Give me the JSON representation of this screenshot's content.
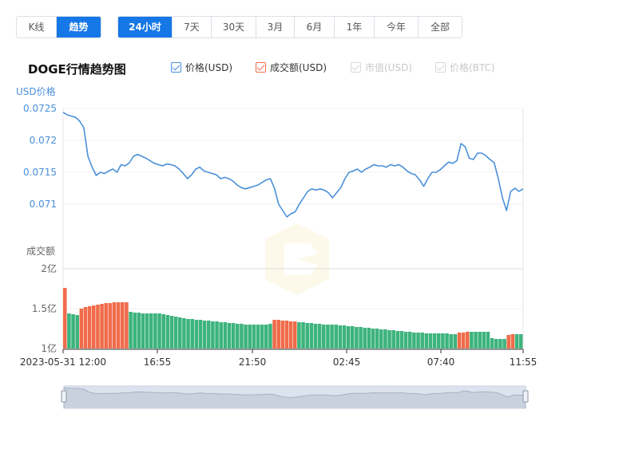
{
  "mode_buttons": [
    {
      "label": "K线",
      "active": false
    },
    {
      "label": "趋势",
      "active": true
    }
  ],
  "range_buttons": [
    {
      "label": "24小时",
      "active": true
    },
    {
      "label": "7天",
      "active": false
    },
    {
      "label": "30天",
      "active": false
    },
    {
      "label": "3月",
      "active": false
    },
    {
      "label": "6月",
      "active": false
    },
    {
      "label": "1年",
      "active": false
    },
    {
      "label": "今年",
      "active": false
    },
    {
      "label": "全部",
      "active": false
    }
  ],
  "legend": [
    {
      "label": "价格(USD)",
      "color": "#4a90d9",
      "checked": true,
      "enabled": true
    },
    {
      "label": "成交额(USD)",
      "color": "#f06b4a",
      "checked": true,
      "enabled": true
    },
    {
      "label": "市值(USD)",
      "color": "#cccccc",
      "checked": true,
      "enabled": false
    },
    {
      "label": "价格(BTC)",
      "color": "#cccccc",
      "checked": true,
      "enabled": false
    }
  ],
  "colors": {
    "price_line": "#4a90d9",
    "volume_up": "#3db37d",
    "volume_down": "#f06b4a",
    "accent": "#1677e6"
  },
  "chart_data": {
    "type": "line",
    "title": "DOGE行情趋势图",
    "price_axis_label": "USD价格",
    "volume_axis_label": "成交额",
    "price_ticks": [
      "0.0725",
      "0.072",
      "0.0715",
      "0.071"
    ],
    "price_ylim": [
      0.0706,
      0.0725
    ],
    "volume_ticks": [
      "2亿",
      "1.5亿",
      "1亿"
    ],
    "volume_ylim": [
      1.0,
      2.0
    ],
    "x_ticks": [
      "2023-05-31 12:00",
      "16:55",
      "21:50",
      "02:45",
      "07:40",
      "11:55"
    ],
    "price_series": [
      [
        0,
        0.07244
      ],
      [
        1,
        0.0724
      ],
      [
        2,
        0.07238
      ],
      [
        3,
        0.07236
      ],
      [
        4,
        0.0723
      ],
      [
        5,
        0.0722
      ],
      [
        6,
        0.07175
      ],
      [
        7,
        0.07158
      ],
      [
        8,
        0.07145
      ],
      [
        9,
        0.0715
      ],
      [
        10,
        0.07148
      ],
      [
        11,
        0.07152
      ],
      [
        12,
        0.07155
      ],
      [
        13,
        0.0715
      ],
      [
        14,
        0.07162
      ],
      [
        15,
        0.0716
      ],
      [
        16,
        0.07165
      ],
      [
        17,
        0.07175
      ],
      [
        18,
        0.07178
      ],
      [
        19,
        0.07175
      ],
      [
        20,
        0.07172
      ],
      [
        21,
        0.07168
      ],
      [
        22,
        0.07164
      ],
      [
        23,
        0.07162
      ],
      [
        24,
        0.0716
      ],
      [
        25,
        0.07163
      ],
      [
        26,
        0.07162
      ],
      [
        27,
        0.0716
      ],
      [
        28,
        0.07155
      ],
      [
        29,
        0.07148
      ],
      [
        30,
        0.0714
      ],
      [
        31,
        0.07146
      ],
      [
        32,
        0.07155
      ],
      [
        33,
        0.07158
      ],
      [
        34,
        0.07152
      ],
      [
        35,
        0.0715
      ],
      [
        36,
        0.07148
      ],
      [
        37,
        0.07146
      ],
      [
        38,
        0.0714
      ],
      [
        39,
        0.07142
      ],
      [
        40,
        0.0714
      ],
      [
        41,
        0.07136
      ],
      [
        42,
        0.0713
      ],
      [
        43,
        0.07126
      ],
      [
        44,
        0.07124
      ],
      [
        45,
        0.07126
      ],
      [
        46,
        0.07128
      ],
      [
        47,
        0.0713
      ],
      [
        48,
        0.07134
      ],
      [
        49,
        0.07138
      ],
      [
        50,
        0.0714
      ],
      [
        51,
        0.07125
      ],
      [
        52,
        0.071
      ],
      [
        53,
        0.0709
      ],
      [
        54,
        0.0708
      ],
      [
        55,
        0.07085
      ],
      [
        56,
        0.07088
      ],
      [
        57,
        0.071
      ],
      [
        58,
        0.0711
      ],
      [
        59,
        0.0712
      ],
      [
        60,
        0.07124
      ],
      [
        61,
        0.07122
      ],
      [
        62,
        0.07124
      ],
      [
        63,
        0.07122
      ],
      [
        64,
        0.07118
      ],
      [
        65,
        0.0711
      ],
      [
        66,
        0.07118
      ],
      [
        67,
        0.07126
      ],
      [
        68,
        0.0714
      ],
      [
        69,
        0.0715
      ],
      [
        70,
        0.07152
      ],
      [
        71,
        0.07155
      ],
      [
        72,
        0.0715
      ],
      [
        73,
        0.07155
      ],
      [
        74,
        0.07158
      ],
      [
        75,
        0.07162
      ],
      [
        76,
        0.0716
      ],
      [
        77,
        0.0716
      ],
      [
        78,
        0.07158
      ],
      [
        79,
        0.07162
      ],
      [
        80,
        0.0716
      ],
      [
        81,
        0.07162
      ],
      [
        82,
        0.07158
      ],
      [
        83,
        0.07152
      ],
      [
        84,
        0.07148
      ],
      [
        85,
        0.07146
      ],
      [
        86,
        0.07138
      ],
      [
        87,
        0.07128
      ],
      [
        88,
        0.0714
      ],
      [
        89,
        0.0715
      ],
      [
        90,
        0.0715
      ],
      [
        91,
        0.07154
      ],
      [
        92,
        0.0716
      ],
      [
        93,
        0.07166
      ],
      [
        94,
        0.07164
      ],
      [
        95,
        0.07168
      ],
      [
        96,
        0.07195
      ],
      [
        97,
        0.0719
      ],
      [
        98,
        0.07172
      ],
      [
        99,
        0.0717
      ],
      [
        100,
        0.0718
      ],
      [
        101,
        0.0718
      ],
      [
        102,
        0.07176
      ],
      [
        103,
        0.0717
      ],
      [
        104,
        0.07165
      ],
      [
        105,
        0.0714
      ],
      [
        106,
        0.0711
      ],
      [
        107,
        0.0709
      ],
      [
        108,
        0.0712
      ],
      [
        109,
        0.07125
      ],
      [
        110,
        0.0712
      ],
      [
        111,
        0.07124
      ]
    ],
    "volume_series": [
      [
        0,
        1.76,
        "down"
      ],
      [
        1,
        1.44,
        "up"
      ],
      [
        2,
        1.43,
        "up"
      ],
      [
        3,
        1.42,
        "up"
      ],
      [
        4,
        1.5,
        "down"
      ],
      [
        5,
        1.52,
        "down"
      ],
      [
        6,
        1.53,
        "down"
      ],
      [
        7,
        1.54,
        "down"
      ],
      [
        8,
        1.55,
        "down"
      ],
      [
        9,
        1.56,
        "down"
      ],
      [
        10,
        1.57,
        "down"
      ],
      [
        11,
        1.57,
        "down"
      ],
      [
        12,
        1.58,
        "down"
      ],
      [
        13,
        1.58,
        "down"
      ],
      [
        14,
        1.58,
        "down"
      ],
      [
        15,
        1.58,
        "down"
      ],
      [
        16,
        1.46,
        "up"
      ],
      [
        17,
        1.45,
        "up"
      ],
      [
        18,
        1.45,
        "up"
      ],
      [
        19,
        1.44,
        "up"
      ],
      [
        20,
        1.44,
        "up"
      ],
      [
        21,
        1.44,
        "up"
      ],
      [
        22,
        1.44,
        "up"
      ],
      [
        23,
        1.44,
        "up"
      ],
      [
        24,
        1.43,
        "up"
      ],
      [
        25,
        1.42,
        "up"
      ],
      [
        26,
        1.41,
        "up"
      ],
      [
        27,
        1.4,
        "up"
      ],
      [
        28,
        1.39,
        "up"
      ],
      [
        29,
        1.38,
        "up"
      ],
      [
        30,
        1.37,
        "up"
      ],
      [
        31,
        1.37,
        "up"
      ],
      [
        32,
        1.36,
        "up"
      ],
      [
        33,
        1.36,
        "up"
      ],
      [
        34,
        1.35,
        "up"
      ],
      [
        35,
        1.35,
        "up"
      ],
      [
        36,
        1.34,
        "up"
      ],
      [
        37,
        1.34,
        "up"
      ],
      [
        38,
        1.33,
        "up"
      ],
      [
        39,
        1.33,
        "up"
      ],
      [
        40,
        1.32,
        "up"
      ],
      [
        41,
        1.32,
        "up"
      ],
      [
        42,
        1.31,
        "up"
      ],
      [
        43,
        1.31,
        "up"
      ],
      [
        44,
        1.3,
        "up"
      ],
      [
        45,
        1.3,
        "up"
      ],
      [
        46,
        1.3,
        "up"
      ],
      [
        47,
        1.3,
        "up"
      ],
      [
        48,
        1.3,
        "up"
      ],
      [
        49,
        1.3,
        "up"
      ],
      [
        50,
        1.31,
        "up"
      ],
      [
        51,
        1.36,
        "down"
      ],
      [
        52,
        1.36,
        "down"
      ],
      [
        53,
        1.35,
        "down"
      ],
      [
        54,
        1.35,
        "down"
      ],
      [
        55,
        1.34,
        "down"
      ],
      [
        56,
        1.34,
        "down"
      ],
      [
        57,
        1.33,
        "up"
      ],
      [
        58,
        1.33,
        "up"
      ],
      [
        59,
        1.32,
        "up"
      ],
      [
        60,
        1.32,
        "up"
      ],
      [
        61,
        1.31,
        "up"
      ],
      [
        62,
        1.31,
        "up"
      ],
      [
        63,
        1.3,
        "up"
      ],
      [
        64,
        1.3,
        "up"
      ],
      [
        65,
        1.3,
        "up"
      ],
      [
        66,
        1.3,
        "up"
      ],
      [
        67,
        1.29,
        "up"
      ],
      [
        68,
        1.29,
        "up"
      ],
      [
        69,
        1.28,
        "up"
      ],
      [
        70,
        1.28,
        "up"
      ],
      [
        71,
        1.27,
        "up"
      ],
      [
        72,
        1.27,
        "up"
      ],
      [
        73,
        1.26,
        "up"
      ],
      [
        74,
        1.26,
        "up"
      ],
      [
        75,
        1.25,
        "up"
      ],
      [
        76,
        1.25,
        "up"
      ],
      [
        77,
        1.24,
        "up"
      ],
      [
        78,
        1.24,
        "up"
      ],
      [
        79,
        1.23,
        "up"
      ],
      [
        80,
        1.23,
        "up"
      ],
      [
        81,
        1.22,
        "up"
      ],
      [
        82,
        1.22,
        "up"
      ],
      [
        83,
        1.21,
        "up"
      ],
      [
        84,
        1.21,
        "up"
      ],
      [
        85,
        1.2,
        "up"
      ],
      [
        86,
        1.2,
        "up"
      ],
      [
        87,
        1.2,
        "up"
      ],
      [
        88,
        1.19,
        "up"
      ],
      [
        89,
        1.19,
        "up"
      ],
      [
        90,
        1.19,
        "up"
      ],
      [
        91,
        1.19,
        "up"
      ],
      [
        92,
        1.19,
        "up"
      ],
      [
        93,
        1.19,
        "up"
      ],
      [
        94,
        1.18,
        "up"
      ],
      [
        95,
        1.18,
        "up"
      ],
      [
        96,
        1.2,
        "down"
      ],
      [
        97,
        1.2,
        "down"
      ],
      [
        98,
        1.21,
        "down"
      ],
      [
        99,
        1.21,
        "up"
      ],
      [
        100,
        1.21,
        "up"
      ],
      [
        101,
        1.21,
        "up"
      ],
      [
        102,
        1.21,
        "up"
      ],
      [
        103,
        1.21,
        "up"
      ],
      [
        104,
        1.13,
        "up"
      ],
      [
        105,
        1.12,
        "up"
      ],
      [
        106,
        1.12,
        "up"
      ],
      [
        107,
        1.12,
        "up"
      ],
      [
        108,
        1.17,
        "down"
      ],
      [
        109,
        1.18,
        "down"
      ],
      [
        110,
        1.18,
        "up"
      ],
      [
        111,
        1.18,
        "up"
      ]
    ],
    "x_range": [
      0,
      111
    ],
    "grid": true
  }
}
